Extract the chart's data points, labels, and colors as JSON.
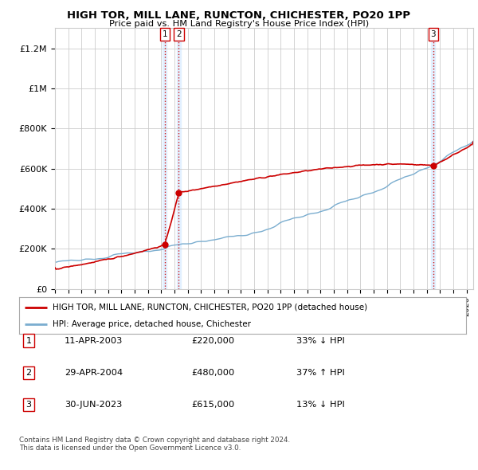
{
  "title": "HIGH TOR, MILL LANE, RUNCTON, CHICHESTER, PO20 1PP",
  "subtitle": "Price paid vs. HM Land Registry's House Price Index (HPI)",
  "xlim": [
    1995.0,
    2026.5
  ],
  "ylim": [
    0,
    1300000
  ],
  "yticks": [
    0,
    200000,
    400000,
    600000,
    800000,
    1000000,
    1200000
  ],
  "ytick_labels": [
    "£0",
    "£200K",
    "£400K",
    "£600K",
    "£800K",
    "£1M",
    "£1.2M"
  ],
  "sale_color": "#cc0000",
  "hpi_color": "#7aadcf",
  "sale_points": [
    {
      "date": 2003.27,
      "value": 220000,
      "label": "1"
    },
    {
      "date": 2004.32,
      "value": 480000,
      "label": "2"
    },
    {
      "date": 2023.49,
      "value": 615000,
      "label": "3"
    }
  ],
  "vline_color": "#cc0000",
  "vline_style": ":",
  "vband_color": "#ddeeff",
  "legend_sale_label": "HIGH TOR, MILL LANE, RUNCTON, CHICHESTER, PO20 1PP (detached house)",
  "legend_hpi_label": "HPI: Average price, detached house, Chichester",
  "table_entries": [
    {
      "num": "1",
      "date": "11-APR-2003",
      "price": "£220,000",
      "change": "33% ↓ HPI"
    },
    {
      "num": "2",
      "date": "29-APR-2004",
      "price": "£480,000",
      "change": "37% ↑ HPI"
    },
    {
      "num": "3",
      "date": "30-JUN-2023",
      "price": "£615,000",
      "change": "13% ↓ HPI"
    }
  ],
  "footer": "Contains HM Land Registry data © Crown copyright and database right 2024.\nThis data is licensed under the Open Government Licence v3.0.",
  "background_color": "#ffffff",
  "grid_color": "#cccccc"
}
